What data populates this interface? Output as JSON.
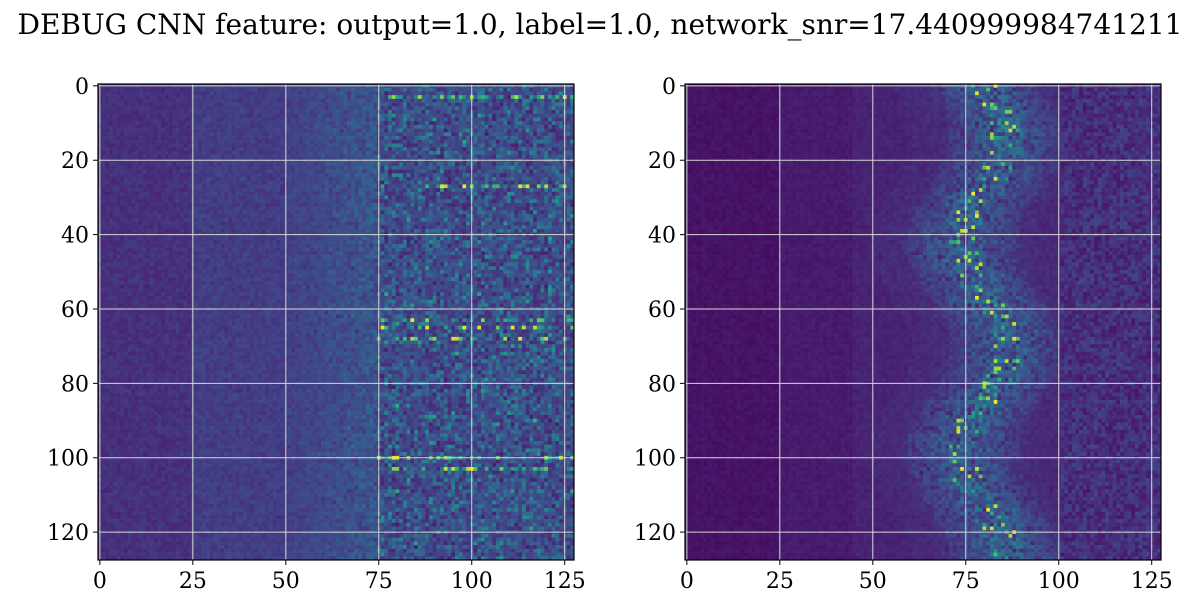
{
  "title": "DEBUG CNN feature: output=1.0, label=1.0, network_snr=17.440999984741211",
  "chart_data": [
    {
      "type": "heatmap",
      "shape": [
        128,
        128
      ],
      "colormap": "viridis",
      "x_ticks": [
        0,
        25,
        50,
        75,
        100,
        125
      ],
      "y_ticks": [
        0,
        20,
        40,
        60,
        80,
        100,
        120
      ],
      "xlim": [
        0,
        127
      ],
      "ylim": [
        127,
        0
      ],
      "grid": true,
      "pattern": "noise-dominated, brighter toward right",
      "bright_rows": [
        3,
        27,
        63,
        65,
        68,
        100,
        103
      ],
      "bright_columns_range": [
        75,
        127
      ]
    },
    {
      "type": "heatmap",
      "shape": [
        128,
        128
      ],
      "colormap": "viridis",
      "x_ticks": [
        0,
        25,
        50,
        75,
        100,
        125
      ],
      "y_ticks": [
        0,
        20,
        40,
        60,
        80,
        100,
        120
      ],
      "xlim": [
        0,
        127
      ],
      "ylim": [
        127,
        0
      ],
      "grid": true,
      "pattern": "bright band centered near column 80",
      "band_center_column": 80,
      "band_width_columns": 10
    }
  ]
}
